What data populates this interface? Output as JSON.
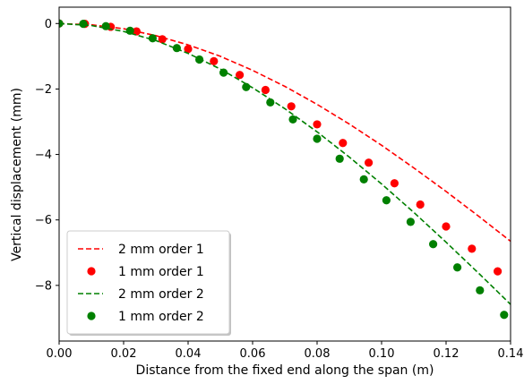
{
  "chart_data": {
    "type": "line",
    "title": "",
    "xlabel": "Distance from the fixed end along the span (m)",
    "ylabel": "Vertical displacement (mm)",
    "xlim": [
      0.0,
      0.14
    ],
    "ylim": [
      -9.7,
      0.5
    ],
    "xticks": [
      0.0,
      0.02,
      0.04,
      0.06,
      0.08,
      0.1,
      0.12,
      0.14
    ],
    "xtick_labels": [
      "0.00",
      "0.02",
      "0.04",
      "0.06",
      "0.08",
      "0.10",
      "0.12",
      "0.14"
    ],
    "yticks": [
      0,
      -2,
      -4,
      -6,
      -8
    ],
    "ytick_labels": [
      "0",
      "−2",
      "−4",
      "−6",
      "−8"
    ],
    "grid": false,
    "legend_position": "lower-left",
    "series": [
      {
        "name": "2 mm order 1",
        "style": "dashed-line",
        "color": "#ff0000",
        "x": [
          0.0,
          0.01,
          0.02,
          0.03,
          0.04,
          0.05,
          0.06,
          0.07,
          0.08,
          0.09,
          0.1,
          0.11,
          0.12,
          0.13,
          0.14
        ],
        "y": [
          0.0,
          -0.04,
          -0.16,
          -0.37,
          -0.65,
          -1.0,
          -1.43,
          -1.92,
          -2.47,
          -3.07,
          -3.72,
          -4.41,
          -5.13,
          -5.88,
          -6.65
        ]
      },
      {
        "name": "1 mm order 1",
        "style": "dots",
        "color": "#ff0000",
        "x": [
          0.0,
          0.008,
          0.016,
          0.024,
          0.032,
          0.04,
          0.048,
          0.056,
          0.064,
          0.072,
          0.08,
          0.088,
          0.096,
          0.104,
          0.112,
          0.12,
          0.128,
          0.136
        ],
        "y": [
          0.0,
          -0.01,
          -0.1,
          -0.24,
          -0.48,
          -0.78,
          -1.15,
          -1.57,
          -2.03,
          -2.53,
          -3.08,
          -3.65,
          -4.25,
          -4.88,
          -5.53,
          -6.2,
          -6.88,
          -7.57
        ]
      },
      {
        "name": "2 mm order 2",
        "style": "dashed-line",
        "color": "#008000",
        "x": [
          0.0,
          0.01,
          0.02,
          0.03,
          0.04,
          0.05,
          0.06,
          0.07,
          0.08,
          0.09,
          0.1,
          0.11,
          0.12,
          0.13,
          0.14
        ],
        "y": [
          0.0,
          -0.06,
          -0.24,
          -0.52,
          -0.91,
          -1.39,
          -1.96,
          -2.6,
          -3.31,
          -4.08,
          -4.9,
          -5.77,
          -6.68,
          -7.62,
          -8.58
        ]
      },
      {
        "name": "1 mm order 2",
        "style": "dots",
        "color": "#008000",
        "x": [
          0.0,
          0.0075,
          0.0145,
          0.022,
          0.029,
          0.0365,
          0.0435,
          0.051,
          0.058,
          0.0655,
          0.0725,
          0.08,
          0.087,
          0.0945,
          0.1015,
          0.109,
          0.116,
          0.1235,
          0.1305,
          0.138
        ],
        "y": [
          0.0,
          -0.01,
          -0.08,
          -0.22,
          -0.45,
          -0.75,
          -1.1,
          -1.5,
          -1.94,
          -2.41,
          -2.93,
          -3.52,
          -4.13,
          -4.76,
          -5.4,
          -6.06,
          -6.74,
          -7.45,
          -8.15,
          -8.9
        ]
      }
    ]
  }
}
